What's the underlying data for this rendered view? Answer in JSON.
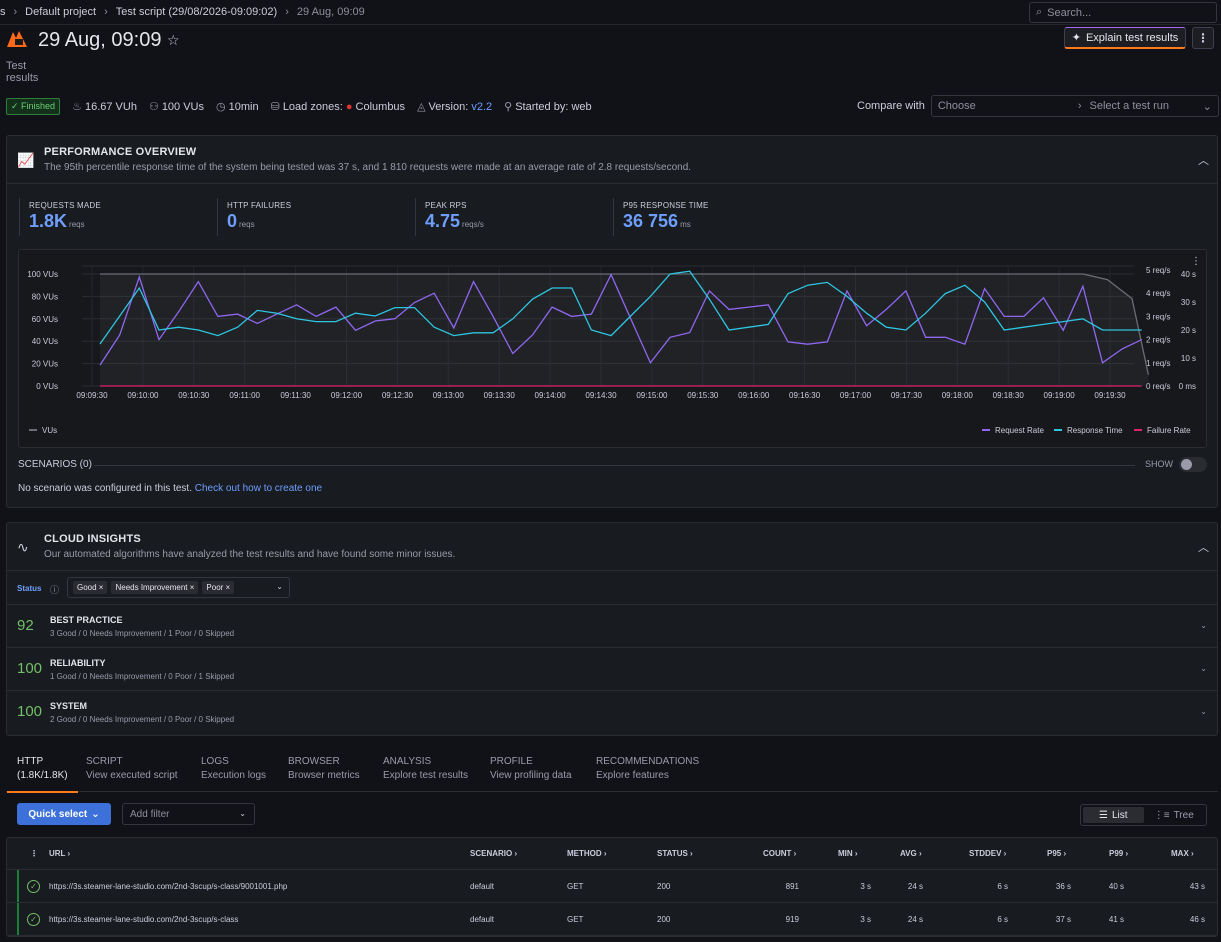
{
  "breadcrumb": {
    "root": "s",
    "project": "Default project",
    "script": "Test script (29/08/2026-09:09:02)",
    "current": "29 Aug, 09:09"
  },
  "search": {
    "placeholder": "Search..."
  },
  "header": {
    "title": "29 Aug, 09:09",
    "subtitle": "Test results",
    "explain_label": "Explain test results"
  },
  "meta": {
    "status": "Finished",
    "vuh": "16.67 VUh",
    "vus": "100 VUs",
    "duration": "10min",
    "load_zones_label": "Load zones:",
    "load_zone": "Columbus",
    "version_label": "Version:",
    "version": "v2.2",
    "started_by": "Started by: web"
  },
  "compare": {
    "label": "Compare with",
    "choose": "Choose",
    "select_run": "Select a test run"
  },
  "performance": {
    "title": "PERFORMANCE OVERVIEW",
    "description": "The 95th percentile response time of the system being tested was 37 s, and 1 810 requests were made at an average rate of 2.8 requests/second.",
    "stats": [
      {
        "label": "REQUESTS MADE",
        "value": "1.8K",
        "unit": "reqs"
      },
      {
        "label": "HTTP FAILURES",
        "value": "0",
        "unit": "reqs"
      },
      {
        "label": "PEAK RPS",
        "value": "4.75",
        "unit": "reqs/s"
      },
      {
        "label": "P95 RESPONSE TIME",
        "value": "36 756",
        "unit": "ms"
      }
    ]
  },
  "chart_data": {
    "type": "line",
    "x_ticks": [
      "09:09:30",
      "09:10:00",
      "09:10:30",
      "09:11:00",
      "09:11:30",
      "09:12:00",
      "09:12:30",
      "09:13:00",
      "09:13:30",
      "09:14:00",
      "09:14:30",
      "09:15:00",
      "09:15:30",
      "09:16:00",
      "09:16:30",
      "09:17:00",
      "09:17:30",
      "09:18:00",
      "09:18:30",
      "09:19:00",
      "09:19:30"
    ],
    "y_left_ticks": [
      "100 VUs",
      "80 VUs",
      "60 VUs",
      "40 VUs",
      "20 VUs",
      "0 VUs"
    ],
    "y_right1_ticks": [
      "5 req/s",
      "4 req/s",
      "3 req/s",
      "2 req/s",
      "1 req/s",
      "0 req/s"
    ],
    "y_right2_ticks": [
      "40 s",
      "30 s",
      "20 s",
      "10 s",
      "0 ms"
    ],
    "ylim_left": [
      0,
      100
    ],
    "ylim_rps": [
      0,
      5
    ],
    "ylim_resp_s": [
      0,
      40
    ],
    "time_range_s": [
      0,
      630
    ],
    "series": [
      {
        "name": "VUs",
        "color": "#6b6d75",
        "axis": "left",
        "x": [
          0,
          600,
          615,
          630,
          640
        ],
        "values": [
          100,
          100,
          95,
          78,
          10
        ]
      },
      {
        "name": "Request Rate",
        "color": "#8f67f0",
        "axis": "rps",
        "x": [
          0,
          12,
          24,
          36,
          48,
          60,
          72,
          84,
          96,
          108,
          120,
          132,
          144,
          156,
          168,
          180,
          192,
          204,
          216,
          228,
          240,
          252,
          264,
          276,
          288,
          300,
          312,
          324,
          336,
          348,
          360,
          372,
          384,
          396,
          408,
          420,
          432,
          444,
          456,
          468,
          480,
          492,
          504,
          516,
          528,
          540,
          552,
          564,
          576,
          588,
          600,
          612,
          624,
          636
        ],
        "values": [
          0.9,
          2.2,
          4.7,
          2.0,
          3.2,
          4.5,
          3.0,
          3.1,
          2.7,
          3.1,
          3.5,
          3.0,
          3.4,
          2.4,
          2.8,
          2.9,
          3.6,
          4.0,
          2.5,
          4.5,
          3.0,
          1.4,
          2.2,
          3.4,
          3.0,
          3.1,
          4.8,
          2.9,
          1.0,
          2.1,
          2.3,
          4.1,
          3.3,
          3.4,
          3.5,
          1.9,
          1.8,
          1.9,
          4.1,
          2.6,
          3.3,
          4.1,
          2.1,
          2.1,
          1.8,
          4.2,
          3.0,
          3.0,
          3.8,
          2.4,
          4.3,
          1.0,
          1.6,
          2.0
        ]
      },
      {
        "name": "Response Time",
        "color": "#2ec5e0",
        "axis": "resp",
        "x": [
          0,
          12,
          24,
          36,
          48,
          60,
          72,
          84,
          96,
          108,
          120,
          132,
          144,
          156,
          168,
          180,
          192,
          204,
          216,
          228,
          240,
          252,
          264,
          276,
          288,
          300,
          312,
          324,
          336,
          348,
          360,
          372,
          384,
          396,
          408,
          420,
          432,
          444,
          456,
          468,
          480,
          492,
          504,
          516,
          528,
          540,
          552,
          564,
          576,
          588,
          600,
          612,
          624,
          636
        ],
        "values": [
          15,
          25,
          35,
          20,
          21,
          20,
          18,
          21,
          27,
          26,
          24,
          23,
          23,
          26,
          25,
          28,
          28,
          21,
          18,
          19,
          19,
          24,
          31,
          35,
          35,
          20,
          18,
          25,
          32,
          40,
          41,
          31,
          20,
          21,
          22,
          33,
          36,
          37,
          32,
          26,
          21,
          20,
          26,
          33,
          36,
          30,
          20,
          21,
          22,
          23,
          24,
          20,
          20,
          20
        ]
      },
      {
        "name": "Failure Rate",
        "color": "#e0226e",
        "axis": "rps",
        "x": [
          0,
          636
        ],
        "values": [
          0,
          0
        ]
      }
    ],
    "legend": [
      "VUs",
      "Request Rate",
      "Response Time",
      "Failure Rate"
    ],
    "grid": true
  },
  "scenarios": {
    "title": "SCENARIOS (0)",
    "show": "SHOW",
    "empty_text": "No scenario was configured in this test.",
    "empty_link": "Check out how to create one"
  },
  "insights": {
    "title": "CLOUD INSIGHTS",
    "description": "Our automated algorithms have analyzed the test results and have found some minor issues.",
    "status_label": "Status",
    "chips": [
      "Good",
      "Needs Improvement",
      "Poor"
    ],
    "rows": [
      {
        "score": "92",
        "title": "BEST PRACTICE",
        "desc": "3 Good / 0 Needs Improvement / 1 Poor / 0 Skipped"
      },
      {
        "score": "100",
        "title": "RELIABILITY",
        "desc": "1 Good / 0 Needs Improvement / 0 Poor / 1 Skipped"
      },
      {
        "score": "100",
        "title": "SYSTEM",
        "desc": "2 Good / 0 Needs Improvement / 0 Poor / 0 Skipped"
      }
    ]
  },
  "tabs": [
    {
      "title": "HTTP",
      "sub": "(1.8K/1.8K)"
    },
    {
      "title": "SCRIPT",
      "sub": "View executed script"
    },
    {
      "title": "LOGS",
      "sub": "Execution logs"
    },
    {
      "title": "BROWSER",
      "sub": "Browser metrics"
    },
    {
      "title": "ANALYSIS",
      "sub": "Explore test results"
    },
    {
      "title": "PROFILE",
      "sub": "View profiling data"
    },
    {
      "title": "RECOMMENDATIONS",
      "sub": "Explore features"
    }
  ],
  "toolbar": {
    "quick_select": "Quick select",
    "add_filter": "Add filter",
    "list": "List",
    "tree": "Tree"
  },
  "table": {
    "headers": [
      "URL",
      "SCENARIO",
      "METHOD",
      "STATUS",
      "COUNT",
      "MIN",
      "AVG",
      "STDDEV",
      "P95",
      "P99",
      "MAX"
    ],
    "rows": [
      [
        "https://3s.steamer-lane-studio.com/2nd-3scup/s-class/9001001.php",
        "default",
        "GET",
        "200",
        "891",
        "3 s",
        "24 s",
        "6 s",
        "36 s",
        "40 s",
        "43 s"
      ],
      [
        "https://3s.steamer-lane-studio.com/2nd-3scup/s-class",
        "default",
        "GET",
        "200",
        "919",
        "3 s",
        "24 s",
        "6 s",
        "37 s",
        "41 s",
        "46 s"
      ]
    ]
  }
}
